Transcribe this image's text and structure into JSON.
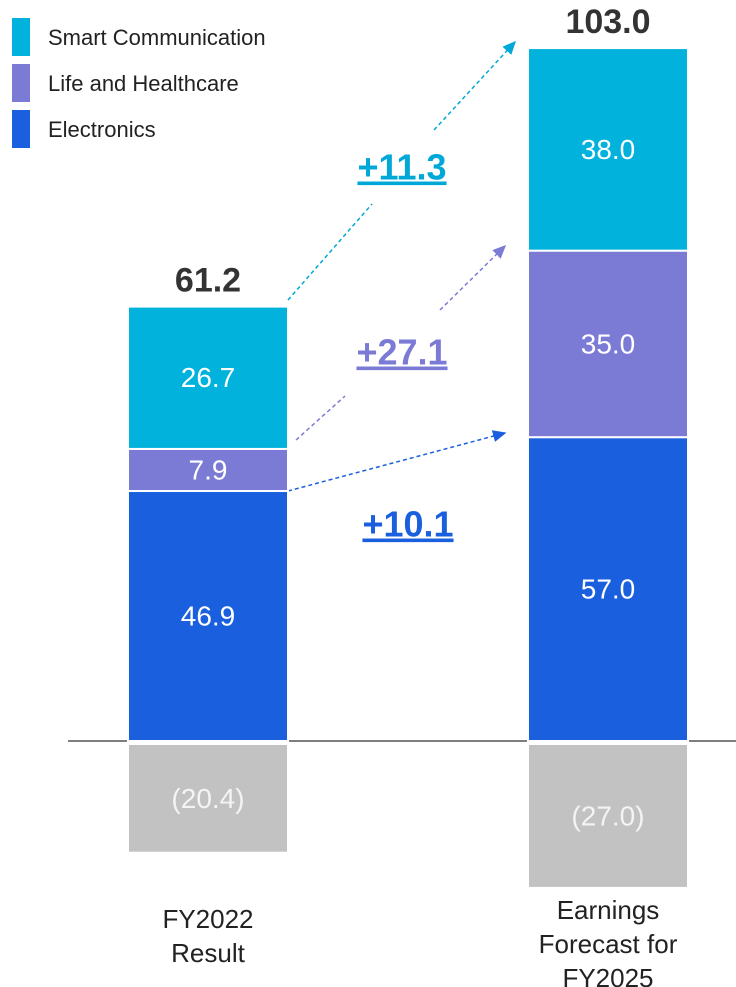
{
  "chart_data": {
    "type": "stacked_bar",
    "categories": [
      "FY2022\nResult",
      "Earnings\nForecast for\nFY2025"
    ],
    "series": [
      {
        "name": "Electronics",
        "color": "#1a5fde",
        "values": [
          46.9,
          57
        ],
        "value_labels": [
          "46.9",
          "57.0"
        ]
      },
      {
        "name": "Life and Healthcare",
        "color": "#7b7bd6",
        "values": [
          7.9,
          35
        ],
        "value_labels": [
          "7.9",
          "35.0"
        ]
      },
      {
        "name": "Smart Communication",
        "color": "#00b2dc",
        "values": [
          26.7,
          38
        ],
        "value_labels": [
          "26.7",
          "38.0"
        ]
      },
      {
        "color": "#c2c2c2",
        "values": [
          -20.4,
          -27
        ],
        "value_labels": [
          "(20.4)",
          "(27.0)"
        ]
      }
    ],
    "totals": [
      61.2,
      {
        "value": 103,
        "label": "103.0"
      }
    ],
    "annotations": [
      {
        "value": 11.3,
        "label": "+11.3",
        "color": "#00a8d8"
      },
      {
        "value": 27.1,
        "label": "+27.1",
        "color": "#7b7bd6"
      },
      {
        "value": 10.1,
        "label": "+10.1",
        "color": "#1a5fde"
      }
    ],
    "legend": "top-left"
  }
}
